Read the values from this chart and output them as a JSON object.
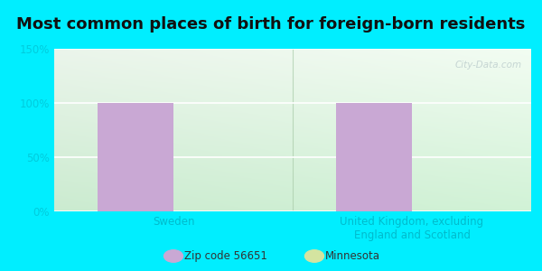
{
  "title": "Most common places of birth for foreign-born residents",
  "categories": [
    "Sweden",
    "United Kingdom, excluding\nEngland and Scotland"
  ],
  "series": [
    {
      "label": "Zip code 56651",
      "values": [
        100,
        100
      ],
      "color": "#c9a8d4"
    },
    {
      "label": "Minnesota",
      "values": [
        0,
        0
      ],
      "color": "#d4e4a0"
    }
  ],
  "ylim": [
    0,
    150
  ],
  "yticks": [
    0,
    50,
    100,
    150
  ],
  "ytick_labels": [
    "0%",
    "50%",
    "100%",
    "150%"
  ],
  "bg_color_outer": "#00eeff",
  "title_fontsize": 13,
  "bar_width": 0.32,
  "watermark": "City-Data.com",
  "tick_color": "#00ccdd",
  "label_color": "#00bbcc"
}
